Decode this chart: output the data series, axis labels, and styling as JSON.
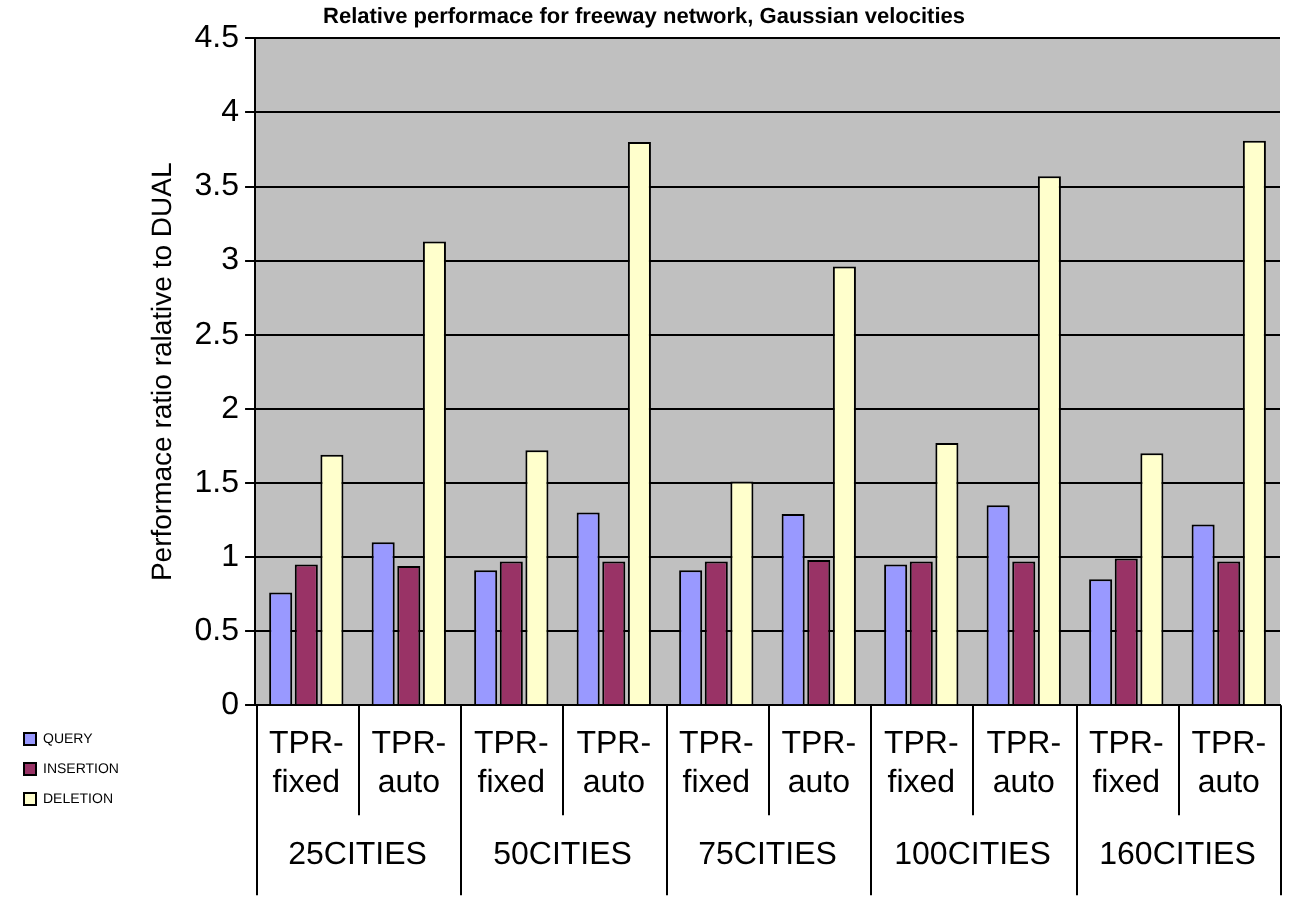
{
  "chart_data": {
    "type": "bar",
    "title": "Relative performace for freeway network, Gaussian velocities",
    "ylabel": "Performace ratio ralative to DUAL",
    "categories": [
      "TPR-fixed",
      "TPR-auto",
      "TPR-fixed",
      "TPR-auto",
      "TPR-fixed",
      "TPR-auto",
      "TPR-fixed",
      "TPR-auto",
      "TPR-fixed",
      "TPR-auto"
    ],
    "annotations": [
      "25CITIES",
      "50CITIES",
      "75CITIES",
      "100CITIES",
      "160CITIES"
    ],
    "series": [
      {
        "name": "QUERY",
        "color": "#9999ff",
        "values": [
          0.76,
          1.1,
          0.91,
          1.3,
          0.91,
          1.29,
          0.95,
          1.35,
          0.85,
          1.22
        ]
      },
      {
        "name": "INSERTION",
        "color": "#993366",
        "values": [
          0.95,
          0.94,
          0.97,
          0.97,
          0.97,
          0.98,
          0.97,
          0.97,
          0.99,
          0.97
        ]
      },
      {
        "name": "DELETION",
        "color": "#ffffcc",
        "values": [
          1.69,
          3.13,
          1.72,
          3.8,
          1.51,
          2.96,
          1.77,
          3.57,
          1.7,
          3.81
        ]
      }
    ],
    "ylim": [
      0,
      4.5
    ],
    "yticks": [
      0,
      0.5,
      1,
      1.5,
      2,
      2.5,
      3,
      3.5,
      4,
      4.5
    ],
    "grid": "y",
    "legend": "bottom left"
  }
}
